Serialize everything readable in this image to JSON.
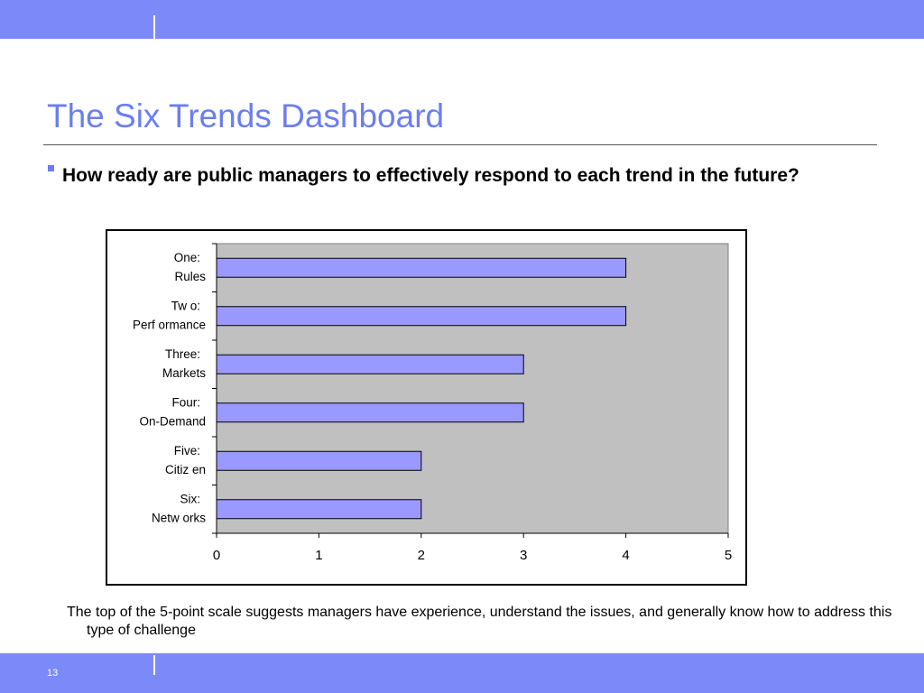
{
  "theme": {
    "bar_color": "#7b8af8",
    "title_color": "#6b7ef0",
    "plot_bg": "#c0c0c0",
    "bar_fill": "#9999ff"
  },
  "slide": {
    "title": "The Six Trends Dashboard",
    "bullet": "How ready are public managers to effectively respond to each trend in the future?",
    "caption": "The top of the 5-point scale suggests managers have experience, understand the issues, and generally know how to address this type of challenge",
    "page_number": "13"
  },
  "chart_data": {
    "type": "bar",
    "orientation": "horizontal",
    "categories": [
      [
        "One:",
        "Rules"
      ],
      [
        "Tw o:",
        "Perf ormance"
      ],
      [
        "Three:",
        "Markets"
      ],
      [
        "Four:",
        "On-Demand"
      ],
      [
        "Five:",
        "Citiz en"
      ],
      [
        "Six:",
        "Netw orks"
      ]
    ],
    "values": [
      4,
      4,
      3,
      3,
      2,
      2
    ],
    "xlim": [
      0,
      5
    ],
    "xticks": [
      "0",
      "1",
      "2",
      "3",
      "4",
      "5"
    ],
    "title": "",
    "xlabel": "",
    "ylabel": "",
    "grid": false,
    "legend": "none"
  }
}
